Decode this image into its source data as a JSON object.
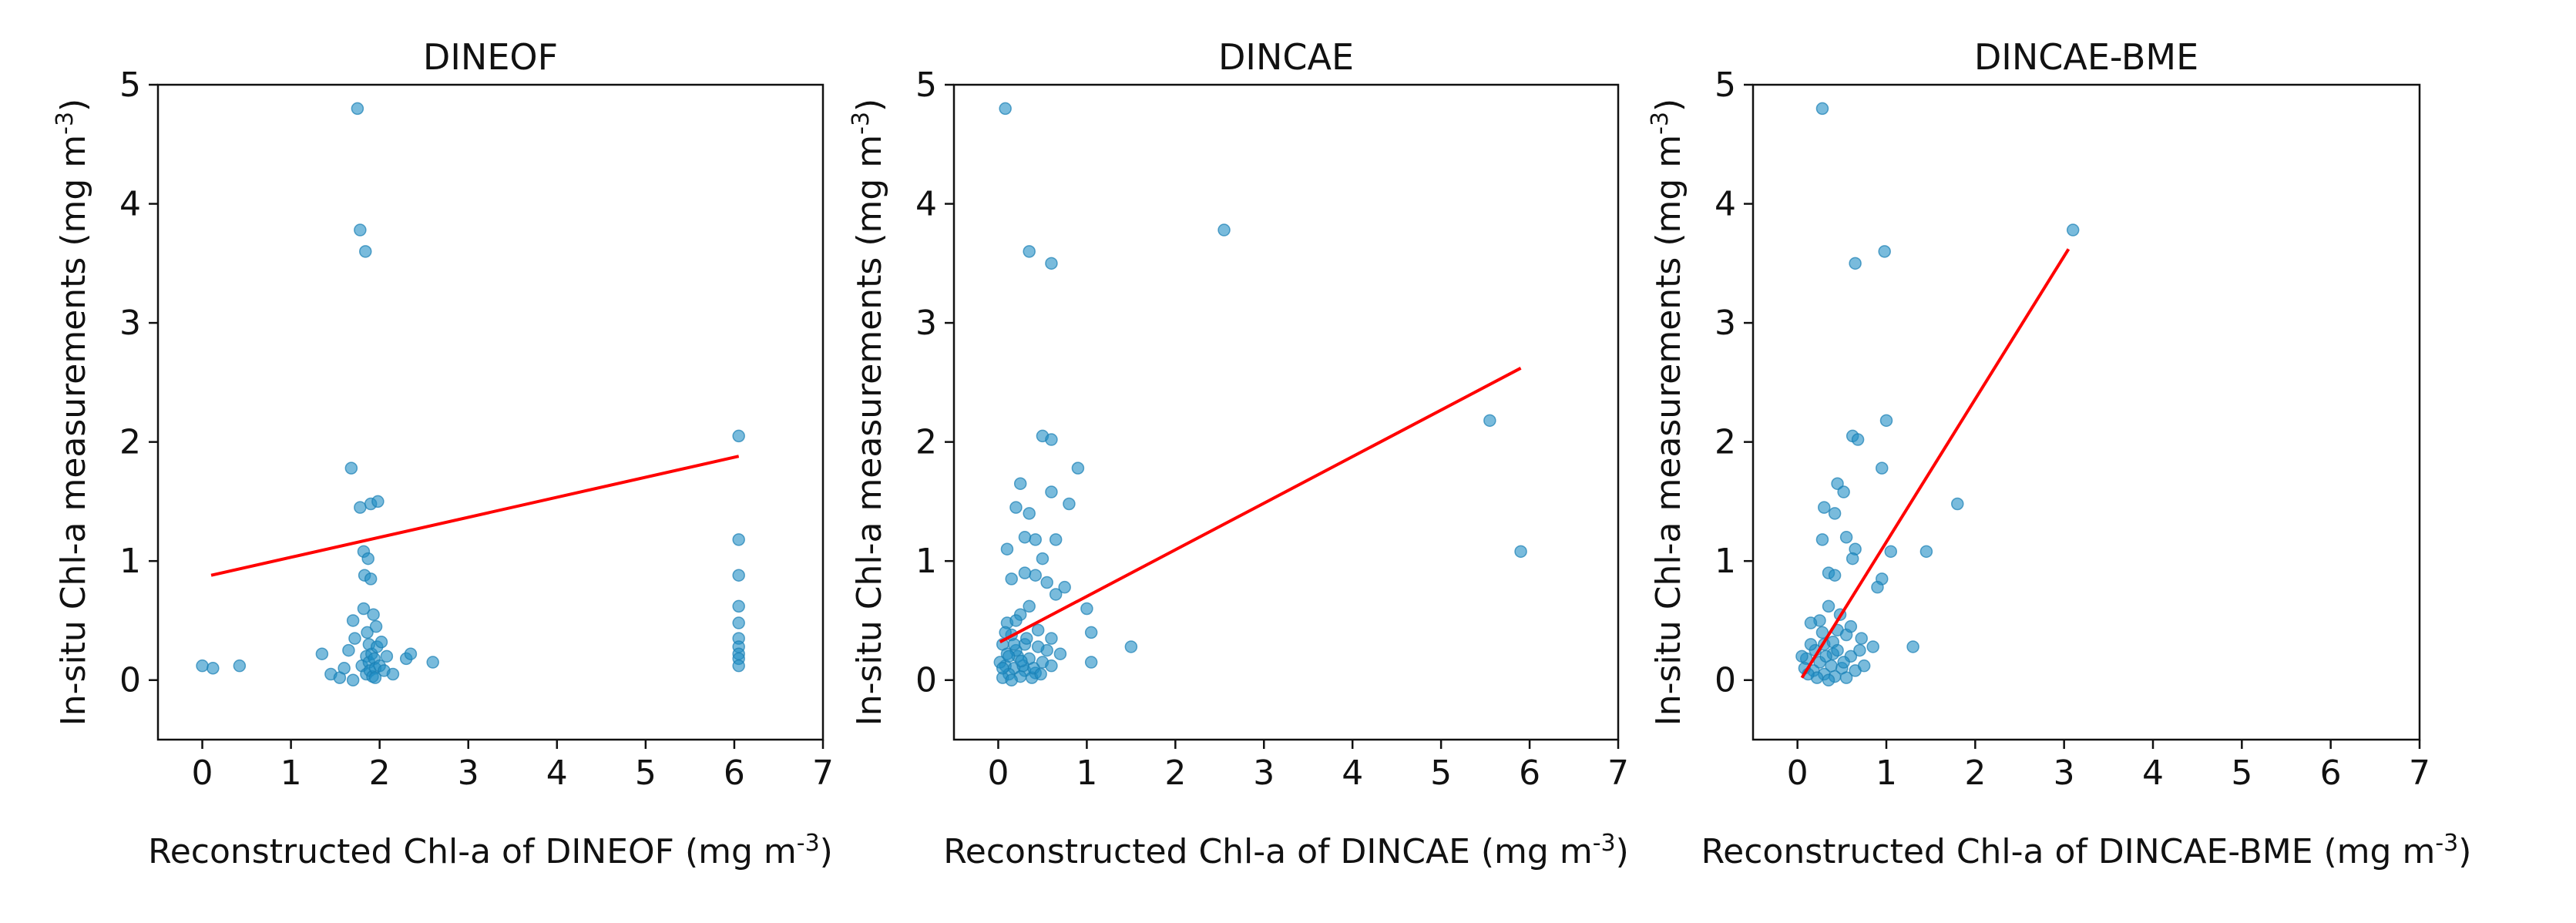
{
  "colors": {
    "point": "#1f8dc4",
    "fit_line": "#ff0000",
    "axes": "#111111"
  },
  "chart_data": [
    {
      "type": "scatter",
      "title": "DINEOF",
      "xlabel": "Reconstructed Chl-a of DINEOF (mg m",
      "xlabel_sup": "-3",
      "xlabel_end": ")",
      "ylabel": "In-situ Chl-a measurements (mg m",
      "ylabel_sup": "-3",
      "ylabel_end": ")",
      "xlim": [
        -0.5,
        7
      ],
      "ylim": [
        -0.5,
        5
      ],
      "xticks": [
        0,
        1,
        2,
        3,
        4,
        5,
        6,
        7
      ],
      "yticks": [
        0,
        1,
        2,
        3,
        4,
        5
      ],
      "points": [
        [
          0.0,
          0.12
        ],
        [
          0.12,
          0.1
        ],
        [
          0.42,
          0.12
        ],
        [
          1.35,
          0.22
        ],
        [
          1.45,
          0.05
        ],
        [
          1.55,
          0.02
        ],
        [
          1.6,
          0.1
        ],
        [
          1.65,
          0.25
        ],
        [
          1.68,
          1.78
        ],
        [
          1.7,
          0.5
        ],
        [
          1.72,
          0.35
        ],
        [
          1.75,
          4.8
        ],
        [
          1.78,
          3.78
        ],
        [
          1.78,
          1.45
        ],
        [
          1.8,
          0.12
        ],
        [
          1.82,
          0.6
        ],
        [
          1.82,
          1.08
        ],
        [
          1.83,
          0.88
        ],
        [
          1.84,
          3.6
        ],
        [
          1.85,
          0.2
        ],
        [
          1.85,
          0.05
        ],
        [
          1.86,
          0.4
        ],
        [
          1.87,
          1.02
        ],
        [
          1.88,
          0.3
        ],
        [
          1.88,
          0.15
        ],
        [
          1.89,
          0.08
        ],
        [
          1.9,
          0.85
        ],
        [
          1.9,
          1.48
        ],
        [
          1.91,
          0.22
        ],
        [
          1.92,
          0.03
        ],
        [
          1.93,
          0.55
        ],
        [
          1.94,
          0.18
        ],
        [
          1.95,
          0.1
        ],
        [
          1.96,
          0.45
        ],
        [
          1.97,
          0.28
        ],
        [
          1.98,
          1.5
        ],
        [
          2.0,
          0.12
        ],
        [
          2.02,
          0.32
        ],
        [
          2.05,
          0.08
        ],
        [
          2.08,
          0.2
        ],
        [
          2.15,
          0.05
        ],
        [
          2.3,
          0.18
        ],
        [
          2.35,
          0.22
        ],
        [
          2.6,
          0.15
        ],
        [
          1.7,
          0.0
        ],
        [
          1.95,
          0.02
        ],
        [
          6.05,
          2.05
        ],
        [
          6.05,
          1.18
        ],
        [
          6.05,
          0.88
        ],
        [
          6.05,
          0.62
        ],
        [
          6.05,
          0.48
        ],
        [
          6.05,
          0.35
        ],
        [
          6.05,
          0.28
        ],
        [
          6.05,
          0.22
        ],
        [
          6.05,
          0.18
        ],
        [
          6.05,
          0.12
        ]
      ],
      "fit_line": [
        [
          0.1,
          0.88
        ],
        [
          6.05,
          1.88
        ]
      ]
    },
    {
      "type": "scatter",
      "title": "DINCAE",
      "xlabel": "Reconstructed Chl-a of DINCAE (mg m",
      "xlabel_sup": "-3",
      "xlabel_end": ")",
      "ylabel": "In-situ Chl-a measurements (mg m",
      "ylabel_sup": "-3",
      "ylabel_end": ")",
      "xlim": [
        -0.5,
        7
      ],
      "ylim": [
        -0.5,
        5
      ],
      "xticks": [
        0,
        1,
        2,
        3,
        4,
        5,
        6,
        7
      ],
      "yticks": [
        0,
        1,
        2,
        3,
        4,
        5
      ],
      "points": [
        [
          0.08,
          4.8
        ],
        [
          0.35,
          3.6
        ],
        [
          0.6,
          3.5
        ],
        [
          2.55,
          3.78
        ],
        [
          5.55,
          2.18
        ],
        [
          5.9,
          1.08
        ],
        [
          0.5,
          2.05
        ],
        [
          0.6,
          2.02
        ],
        [
          0.9,
          1.78
        ],
        [
          0.8,
          1.48
        ],
        [
          0.25,
          1.65
        ],
        [
          0.6,
          1.58
        ],
        [
          0.2,
          1.45
        ],
        [
          0.35,
          1.4
        ],
        [
          0.3,
          1.2
        ],
        [
          0.42,
          1.18
        ],
        [
          0.1,
          1.1
        ],
        [
          0.65,
          1.18
        ],
        [
          0.5,
          1.02
        ],
        [
          0.3,
          0.9
        ],
        [
          0.15,
          0.85
        ],
        [
          0.42,
          0.88
        ],
        [
          0.55,
          0.82
        ],
        [
          0.75,
          0.78
        ],
        [
          1.0,
          0.6
        ],
        [
          1.05,
          0.4
        ],
        [
          1.5,
          0.28
        ],
        [
          1.05,
          0.15
        ],
        [
          0.65,
          0.72
        ],
        [
          0.35,
          0.62
        ],
        [
          0.25,
          0.55
        ],
        [
          0.1,
          0.48
        ],
        [
          0.2,
          0.5
        ],
        [
          0.45,
          0.42
        ],
        [
          0.6,
          0.35
        ],
        [
          0.15,
          0.38
        ],
        [
          0.05,
          0.3
        ],
        [
          0.3,
          0.3
        ],
        [
          0.55,
          0.25
        ],
        [
          0.1,
          0.22
        ],
        [
          0.22,
          0.2
        ],
        [
          0.35,
          0.18
        ],
        [
          0.5,
          0.15
        ],
        [
          0.08,
          0.12
        ],
        [
          0.18,
          0.1
        ],
        [
          0.3,
          0.08
        ],
        [
          0.42,
          0.06
        ],
        [
          0.12,
          0.05
        ],
        [
          0.25,
          0.03
        ],
        [
          0.38,
          0.02
        ],
        [
          0.05,
          0.02
        ],
        [
          0.15,
          0.0
        ],
        [
          0.28,
          0.12
        ],
        [
          0.45,
          0.28
        ],
        [
          0.7,
          0.22
        ],
        [
          0.02,
          0.15
        ],
        [
          0.2,
          0.25
        ],
        [
          0.32,
          0.35
        ],
        [
          0.08,
          0.4
        ],
        [
          0.4,
          0.1
        ],
        [
          0.6,
          0.12
        ],
        [
          0.05,
          0.1
        ],
        [
          0.18,
          0.3
        ],
        [
          0.26,
          0.16
        ],
        [
          0.48,
          0.05
        ],
        [
          0.12,
          0.2
        ]
      ],
      "fit_line": [
        [
          0.02,
          0.32
        ],
        [
          5.9,
          2.62
        ]
      ]
    },
    {
      "type": "scatter",
      "title": "DINCAE-BME",
      "xlabel": "Reconstructed Chl-a of DINCAE-BME (mg m",
      "xlabel_sup": "-3",
      "xlabel_end": ")",
      "ylabel": "In-situ Chl-a measurements (mg m",
      "ylabel_sup": "-3",
      "ylabel_end": ")",
      "xlim": [
        -0.5,
        7
      ],
      "ylim": [
        -0.5,
        5
      ],
      "xticks": [
        0,
        1,
        2,
        3,
        4,
        5,
        6,
        7
      ],
      "yticks": [
        0,
        1,
        2,
        3,
        4,
        5
      ],
      "points": [
        [
          0.28,
          4.8
        ],
        [
          3.1,
          3.78
        ],
        [
          0.98,
          3.6
        ],
        [
          0.65,
          3.5
        ],
        [
          1.0,
          2.18
        ],
        [
          0.62,
          2.05
        ],
        [
          0.68,
          2.02
        ],
        [
          0.95,
          1.78
        ],
        [
          1.8,
          1.48
        ],
        [
          0.45,
          1.65
        ],
        [
          0.52,
          1.58
        ],
        [
          0.3,
          1.45
        ],
        [
          0.42,
          1.4
        ],
        [
          0.55,
          1.2
        ],
        [
          0.28,
          1.18
        ],
        [
          0.65,
          1.1
        ],
        [
          1.45,
          1.08
        ],
        [
          1.05,
          1.08
        ],
        [
          0.62,
          1.02
        ],
        [
          0.35,
          0.9
        ],
        [
          0.42,
          0.88
        ],
        [
          0.95,
          0.85
        ],
        [
          0.9,
          0.78
        ],
        [
          0.35,
          0.62
        ],
        [
          0.25,
          0.5
        ],
        [
          0.15,
          0.48
        ],
        [
          0.45,
          0.42
        ],
        [
          0.55,
          0.38
        ],
        [
          0.72,
          0.35
        ],
        [
          0.85,
          0.28
        ],
        [
          1.3,
          0.28
        ],
        [
          0.3,
          0.3
        ],
        [
          0.2,
          0.25
        ],
        [
          0.4,
          0.22
        ],
        [
          0.6,
          0.2
        ],
        [
          0.1,
          0.18
        ],
        [
          0.25,
          0.15
        ],
        [
          0.38,
          0.12
        ],
        [
          0.5,
          0.1
        ],
        [
          0.65,
          0.08
        ],
        [
          0.18,
          0.08
        ],
        [
          0.3,
          0.05
        ],
        [
          0.42,
          0.03
        ],
        [
          0.55,
          0.02
        ],
        [
          0.08,
          0.1
        ],
        [
          0.22,
          0.02
        ],
        [
          0.35,
          0.0
        ],
        [
          0.75,
          0.12
        ],
        [
          0.15,
          0.3
        ],
        [
          0.48,
          0.55
        ],
        [
          0.28,
          0.4
        ],
        [
          0.6,
          0.45
        ],
        [
          0.05,
          0.2
        ],
        [
          0.4,
          0.32
        ],
        [
          0.32,
          0.2
        ],
        [
          0.7,
          0.25
        ],
        [
          0.52,
          0.15
        ],
        [
          0.12,
          0.05
        ],
        [
          0.45,
          0.25
        ]
      ],
      "fit_line": [
        [
          0.05,
          0.02
        ],
        [
          3.05,
          3.62
        ]
      ]
    }
  ]
}
